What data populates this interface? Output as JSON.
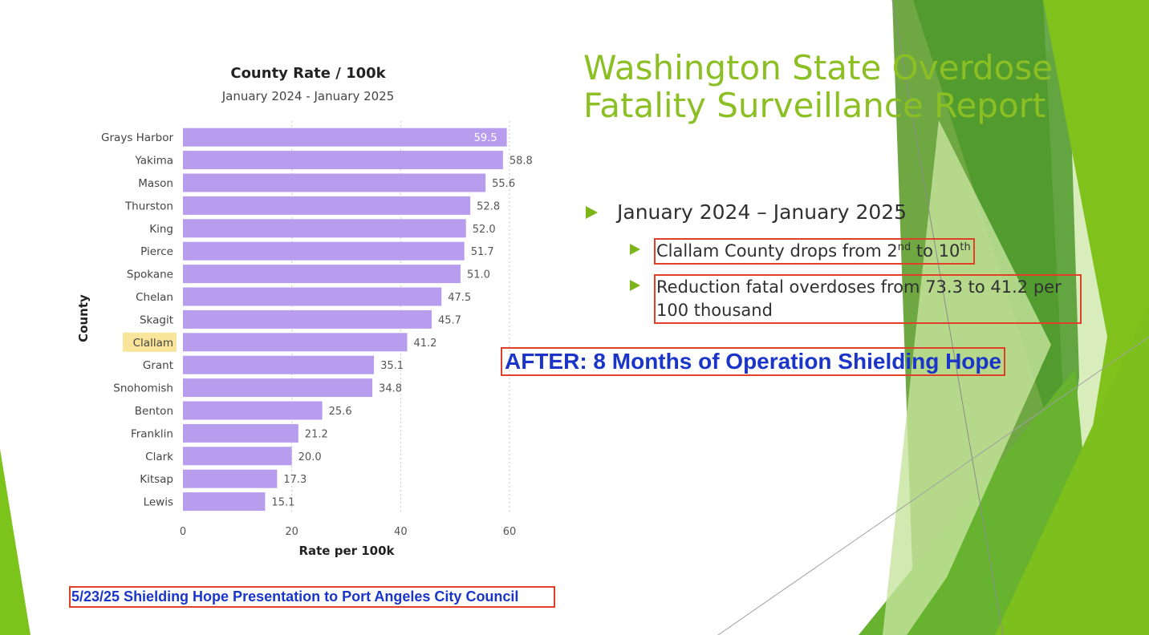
{
  "slide": {
    "title": "Washington State Overdose Fatality Surveillance Report",
    "bullet_main": "January 2024 – January 2025",
    "sub1_prefix": "Clallam County drops from 2",
    "sub1_sup1": "nd",
    "sub1_mid": " to 10",
    "sub1_sup2": "th",
    "sub2": "Reduction fatal overdoses from 73.3 to 41.2 per 100 thousand",
    "after_text": "AFTER: 8 Months of Operation Shielding Hope",
    "footer_text": "5/23/25 Shielding Hope Presentation to Port Angeles City Council"
  },
  "colors": {
    "bar": "#b89ced",
    "highlight": "#f8e59a",
    "title_green": "#8cbf24",
    "accent_red": "#e0402a",
    "blue_text": "#1a35c8"
  },
  "chart_data": {
    "type": "bar",
    "orientation": "horizontal",
    "title": "County Rate / 100k",
    "subtitle": "January 2024 - January 2025",
    "xlabel": "Rate per 100k",
    "ylabel": "County",
    "xlim": [
      0,
      60
    ],
    "xticks": [
      0,
      20,
      40,
      60
    ],
    "grid": "vertical dotted",
    "highlighted_category": "Clallam",
    "categories": [
      "Grays Harbor",
      "Yakima",
      "Mason",
      "Thurston",
      "King",
      "Pierce",
      "Spokane",
      "Chelan",
      "Skagit",
      "Clallam",
      "Grant",
      "Snohomish",
      "Benton",
      "Franklin",
      "Clark",
      "Kitsap",
      "Lewis"
    ],
    "values": [
      59.5,
      58.8,
      55.6,
      52.8,
      52.0,
      51.7,
      51.0,
      47.5,
      45.7,
      41.2,
      35.1,
      34.8,
      25.6,
      21.2,
      20.0,
      17.3,
      15.1
    ],
    "value_labels": [
      "59.5",
      "58.8",
      "55.6",
      "52.8",
      "52.0",
      "51.7",
      "51.0",
      "47.5",
      "45.7",
      "41.2",
      "35.1",
      "34.8",
      "25.6",
      "21.2",
      "20.0",
      "17.3",
      "15.1"
    ]
  }
}
